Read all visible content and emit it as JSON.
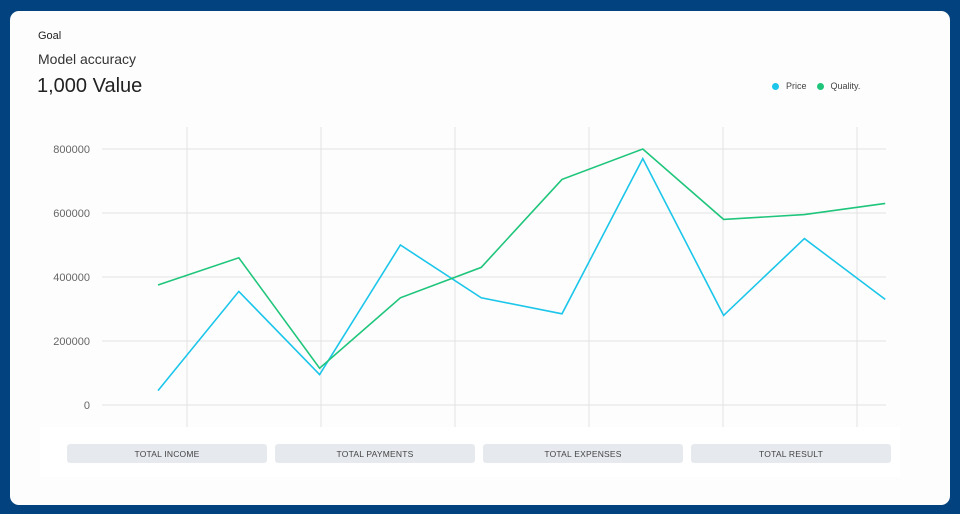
{
  "header": {
    "goal_label": "Goal",
    "subtitle": "Model accuracy",
    "value": "1,000 Value"
  },
  "legend": {
    "items": [
      {
        "label": "Price",
        "color": "#1cc6ea"
      },
      {
        "label": "Quality.",
        "color": "#1ec57b"
      }
    ]
  },
  "tabs": [
    {
      "label": "TOTAL INCOME"
    },
    {
      "label": "TOTAL PAYMENTS"
    },
    {
      "label": "TOTAL EXPENSES"
    },
    {
      "label": "TOTAL RESULT"
    }
  ],
  "colors": {
    "background": "#02427e",
    "card": "#fdfdfd",
    "grid": "#e2e2e2",
    "price": "#1cc6ea",
    "quality": "#1ec57b"
  },
  "chart_data": {
    "type": "line",
    "title": "Model accuracy",
    "subtitle": "1,000 Value",
    "xlabel": "",
    "ylabel": "",
    "ylim": [
      0,
      800000
    ],
    "yticks": [
      "0",
      "200000",
      "400000",
      "600000",
      "800000"
    ],
    "x": [
      1,
      2,
      3,
      4,
      5,
      6,
      7,
      8,
      9,
      10
    ],
    "grid": true,
    "legend_position": "top-right",
    "series": [
      {
        "name": "Price",
        "color": "#1cc6ea",
        "values": [
          45000,
          355000,
          95000,
          500000,
          335000,
          285000,
          770000,
          280000,
          520000,
          330000
        ]
      },
      {
        "name": "Quality.",
        "color": "#1ec57b",
        "values": [
          375000,
          460000,
          115000,
          335000,
          430000,
          705000,
          800000,
          580000,
          595000,
          630000
        ]
      }
    ]
  }
}
